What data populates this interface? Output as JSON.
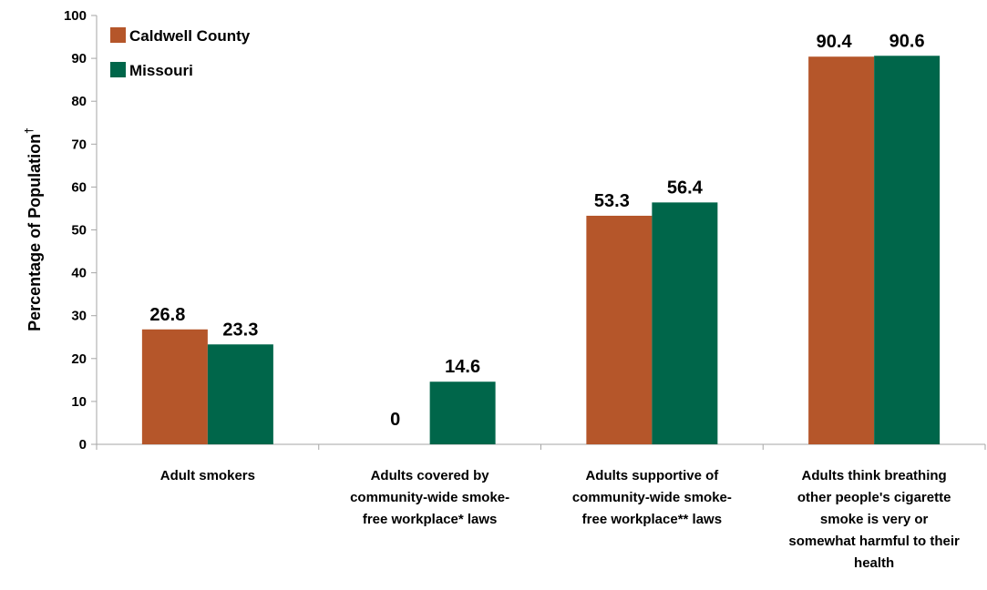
{
  "chart_data": {
    "type": "bar",
    "title": "",
    "xlabel": "",
    "ylabel": "Percentage of Population",
    "ylabel_superscript": "†",
    "ylim": [
      0,
      100
    ],
    "yticks": [
      "0",
      "10",
      "20",
      "30",
      "40",
      "50",
      "60",
      "70",
      "80",
      "90",
      "100"
    ],
    "grid": false,
    "legend_position": "top-left",
    "categories": [
      [
        "Adult smokers"
      ],
      [
        "Adults covered by",
        "community-wide smoke-",
        "free workplace* laws"
      ],
      [
        "Adults supportive of",
        "community-wide smoke-",
        "free workplace** laws"
      ],
      [
        "Adults think breathing",
        "other people's cigarette",
        "smoke is very or",
        "somewhat harmful to their",
        "health"
      ]
    ],
    "series": [
      {
        "name": "Caldwell County",
        "color": "#B5562A",
        "values": [
          26.8,
          0,
          53.3,
          90.4
        ],
        "labels": [
          "26.8",
          "0",
          "53.3",
          "90.4"
        ]
      },
      {
        "name": "Missouri",
        "color": "#00664A",
        "values": [
          23.3,
          14.6,
          56.4,
          90.6
        ],
        "labels": [
          "23.3",
          "14.6",
          "56.4",
          "90.6"
        ]
      }
    ]
  }
}
